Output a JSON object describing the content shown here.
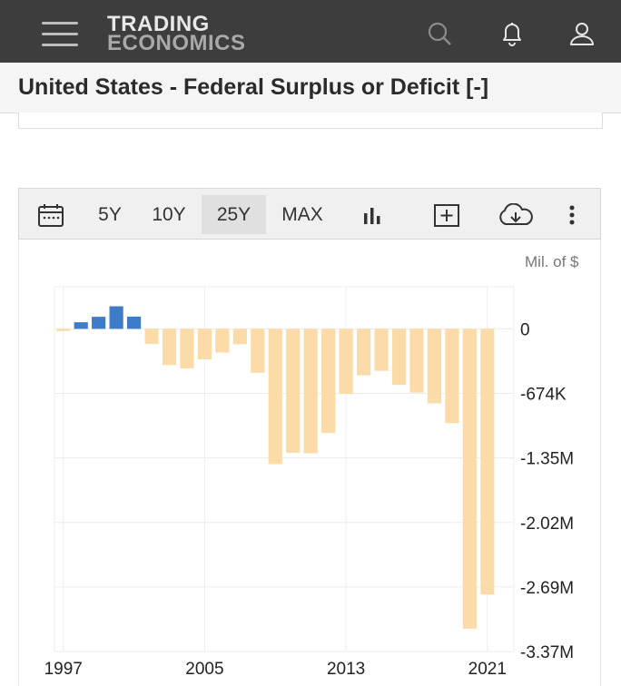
{
  "header": {
    "logo_line1": "TRADING",
    "logo_line2": "ECONOMICS",
    "icons": [
      "menu-icon",
      "search-icon",
      "bell-icon",
      "user-icon"
    ]
  },
  "title": "United States - Federal Surplus or Deficit [-]",
  "toolbar": {
    "ranges": [
      "5Y",
      "10Y",
      "25Y",
      "MAX"
    ],
    "active_range": "25Y",
    "icons": [
      "calendar-icon",
      "bar-chart-icon",
      "add-icon",
      "download-icon",
      "more-icon"
    ]
  },
  "unit": "Mil. of $",
  "colors": {
    "positive": "#3d7cc9",
    "negative": "#fbdca8",
    "header_bg": "#3d3d3d"
  },
  "chart_data": {
    "type": "bar",
    "x": [
      1997,
      1998,
      1999,
      2000,
      2001,
      2002,
      2003,
      2004,
      2005,
      2006,
      2007,
      2008,
      2009,
      2010,
      2011,
      2012,
      2013,
      2014,
      2015,
      2016,
      2017,
      2018,
      2019,
      2020,
      2021,
      2022
    ],
    "values": [
      -22,
      69,
      126,
      236,
      128,
      -158,
      -378,
      -413,
      -318,
      -248,
      -161,
      -459,
      -1413,
      -1294,
      -1300,
      -1087,
      -680,
      -485,
      -438,
      -585,
      -665,
      -779,
      -984,
      -3132,
      -2775,
      0
    ],
    "x_tick_labels": [
      "1997",
      "2005",
      "2013",
      "2021"
    ],
    "y_tick_labels": [
      "0",
      "-674K",
      "-1.35M",
      "-2.02M",
      "-2.69M",
      "-3.37M"
    ],
    "ylim": [
      -3370,
      440
    ],
    "grid": true,
    "legend": "none"
  }
}
